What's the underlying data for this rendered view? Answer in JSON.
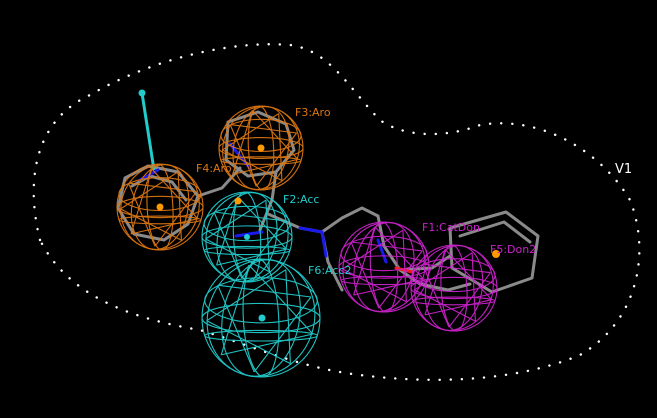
{
  "scene": {
    "background": "#000000",
    "volume": {
      "label": "V1",
      "color": "#ffffff"
    },
    "features": [
      {
        "id": "F1",
        "label": "F1:CatDon",
        "color": "#cc22cc"
      },
      {
        "id": "F2",
        "label": "F2:Acc",
        "color": "#22cccc"
      },
      {
        "id": "F3",
        "label": "F3:Aro",
        "color": "#dd7711"
      },
      {
        "id": "F4",
        "label": "F4:Aro",
        "color": "#dd7711"
      },
      {
        "id": "F5",
        "label": "F5:Don2",
        "color": "#cc22cc"
      },
      {
        "id": "F6",
        "label": "F6:Acc2",
        "color": "#22cccc"
      }
    ],
    "colors": {
      "molecule_bond": "#8a8a8a",
      "nitrogen": "#1a1aee",
      "oxygen": "#ee1a1a",
      "center_point": "#ff9900"
    }
  }
}
